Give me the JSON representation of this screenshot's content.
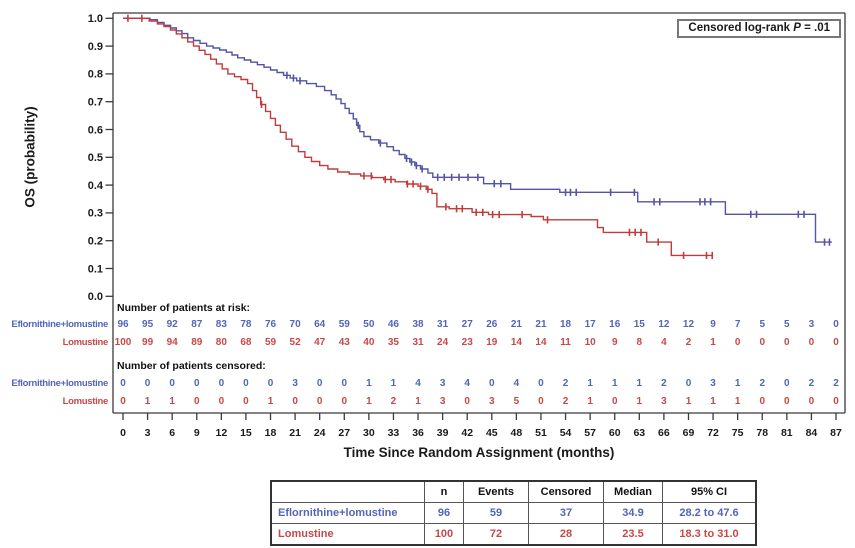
{
  "colors": {
    "blue": "#5254a4",
    "red": "#c23b3b",
    "blue_text": "#5365b8",
    "red_text": "#c74848",
    "axis": "#3a3a3a",
    "text": "#1a1a1a"
  },
  "annotation": {
    "prefix": "Censored log-rank ",
    "p_symbol": "P",
    "suffix": " = .01"
  },
  "y_axis": {
    "title": "OS (probability)",
    "tick_values": [
      1.0,
      0.9,
      0.8,
      0.7,
      0.6,
      0.5,
      0.4,
      0.3,
      0.2,
      0.1,
      0.0
    ]
  },
  "x_axis": {
    "title": "Time Since Random Assignment (months)",
    "ticks": [
      0,
      3,
      6,
      9,
      12,
      15,
      18,
      21,
      24,
      27,
      30,
      33,
      36,
      39,
      42,
      45,
      48,
      51,
      54,
      57,
      60,
      63,
      66,
      69,
      72,
      75,
      78,
      81,
      84,
      87
    ]
  },
  "chart_data": {
    "type": "line",
    "subtype": "kaplan-meier-step",
    "title": "",
    "xlabel": "Time Since Random Assignment (months)",
    "ylabel": "OS (probability)",
    "xlim": [
      0,
      87
    ],
    "ylim": [
      0.0,
      1.0
    ],
    "grid": false,
    "legend_position": "none",
    "annotation": "Censored log-rank P = .01",
    "series": [
      {
        "name": "Eflornithine+lomustine",
        "color_key": "blue",
        "median": 34.9,
        "steps": [
          [
            0,
            1
          ],
          [
            3.3,
            0.995
          ],
          [
            4.2,
            0.985
          ],
          [
            5,
            0.975
          ],
          [
            5.8,
            0.965
          ],
          [
            6.5,
            0.955
          ],
          [
            7.2,
            0.945
          ],
          [
            7.9,
            0.93
          ],
          [
            8.6,
            0.92
          ],
          [
            9.4,
            0.91
          ],
          [
            10.2,
            0.9
          ],
          [
            11,
            0.893
          ],
          [
            11.8,
            0.886
          ],
          [
            12.6,
            0.878
          ],
          [
            13.3,
            0.868
          ],
          [
            14,
            0.858
          ],
          [
            14.8,
            0.85
          ],
          [
            15.6,
            0.842
          ],
          [
            16.4,
            0.833
          ],
          [
            17.2,
            0.824
          ],
          [
            18,
            0.814
          ],
          [
            18.8,
            0.805
          ],
          [
            19.6,
            0.795
          ],
          [
            20.4,
            0.785
          ],
          [
            21.2,
            0.775
          ],
          [
            22.4,
            0.765
          ],
          [
            23.6,
            0.755
          ],
          [
            24.6,
            0.74
          ],
          [
            25.4,
            0.725
          ],
          [
            26,
            0.71
          ],
          [
            26.6,
            0.693
          ],
          [
            27.1,
            0.676
          ],
          [
            27.6,
            0.658
          ],
          [
            28.1,
            0.638
          ],
          [
            28.5,
            0.615
          ],
          [
            28.9,
            0.592
          ],
          [
            29.4,
            0.575
          ],
          [
            30.2,
            0.563
          ],
          [
            31.2,
            0.551
          ],
          [
            32.2,
            0.538
          ],
          [
            33,
            0.524
          ],
          [
            33.7,
            0.51
          ],
          [
            34.4,
            0.496
          ],
          [
            35,
            0.483
          ],
          [
            35.6,
            0.47
          ],
          [
            36.3,
            0.458
          ],
          [
            37.2,
            0.443
          ],
          [
            37.8,
            0.428
          ],
          [
            44,
            0.405
          ],
          [
            47.3,
            0.385
          ],
          [
            53.3,
            0.374
          ],
          [
            62.8,
            0.34
          ],
          [
            73.5,
            0.295
          ],
          [
            84.5,
            0.195
          ]
        ],
        "end_t": 86.5,
        "censor_t": [
          20,
          20.8,
          21.6,
          28.7,
          31.4,
          34.6,
          35.2,
          35.8,
          36.5,
          38.4,
          39.2,
          40.1,
          41,
          42.1,
          43.3,
          45.3,
          46.1,
          54,
          54.6,
          55.3,
          59.5,
          62.4,
          64.8,
          65.5,
          70.4,
          71,
          71.7,
          76.6,
          77.3,
          82.4,
          83.1,
          85.6,
          86.2
        ]
      },
      {
        "name": "Lomustine",
        "color_key": "red",
        "median": 23.5,
        "steps": [
          [
            0,
            1
          ],
          [
            3.2,
            0.99
          ],
          [
            4.2,
            0.98
          ],
          [
            5,
            0.97
          ],
          [
            5.8,
            0.958
          ],
          [
            6.5,
            0.944
          ],
          [
            7.2,
            0.93
          ],
          [
            7.9,
            0.915
          ],
          [
            8.6,
            0.9
          ],
          [
            9.3,
            0.885
          ],
          [
            10,
            0.87
          ],
          [
            10.7,
            0.853
          ],
          [
            11.4,
            0.836
          ],
          [
            12.1,
            0.818
          ],
          [
            12.8,
            0.8
          ],
          [
            13.6,
            0.79
          ],
          [
            14.4,
            0.78
          ],
          [
            15.2,
            0.765
          ],
          [
            15.8,
            0.74
          ],
          [
            16.3,
            0.715
          ],
          [
            16.8,
            0.69
          ],
          [
            17.4,
            0.665
          ],
          [
            18,
            0.64
          ],
          [
            18.6,
            0.615
          ],
          [
            19.2,
            0.59
          ],
          [
            19.9,
            0.565
          ],
          [
            20.6,
            0.54
          ],
          [
            21.4,
            0.52
          ],
          [
            22.2,
            0.5
          ],
          [
            23,
            0.485
          ],
          [
            24,
            0.47
          ],
          [
            25,
            0.458
          ],
          [
            26.2,
            0.447
          ],
          [
            27.6,
            0.44
          ],
          [
            29,
            0.433
          ],
          [
            30.4,
            0.427
          ],
          [
            31.8,
            0.42
          ],
          [
            33.2,
            0.412
          ],
          [
            34.6,
            0.404
          ],
          [
            36,
            0.396
          ],
          [
            37,
            0.385
          ],
          [
            37.7,
            0.37
          ],
          [
            38.3,
            0.322
          ],
          [
            39.8,
            0.315
          ],
          [
            42.6,
            0.302
          ],
          [
            44.6,
            0.294
          ],
          [
            49.8,
            0.287
          ],
          [
            51.3,
            0.275
          ],
          [
            57.9,
            0.247
          ],
          [
            58.6,
            0.23
          ],
          [
            63.9,
            0.195
          ],
          [
            66.9,
            0.147
          ]
        ],
        "end_t": 72,
        "censor_t": [
          0.6,
          2.3,
          16.9,
          29.4,
          30.3,
          32,
          32.7,
          34.7,
          35.4,
          36.3,
          37.2,
          39.4,
          40.7,
          41.4,
          43.1,
          43.9,
          45.1,
          45.9,
          48.7,
          51.8,
          61.8,
          62.5,
          63.2,
          65.3,
          68.4,
          71.2,
          71.9
        ]
      }
    ]
  },
  "risk_section": {
    "at_risk_header": "Number of patients at risk:",
    "censored_header": "Number of patients censored:",
    "rows": [
      {
        "label": "Eflornithine+lomustine",
        "group": "at_risk",
        "color_key": "blue",
        "values": [
          96,
          95,
          92,
          87,
          83,
          78,
          76,
          70,
          64,
          59,
          50,
          46,
          38,
          31,
          27,
          26,
          21,
          21,
          18,
          17,
          16,
          15,
          12,
          12,
          9,
          7,
          5,
          5,
          3,
          0
        ]
      },
      {
        "label": "Lomustine",
        "group": "at_risk",
        "color_key": "red",
        "values": [
          100,
          99,
          94,
          89,
          80,
          68,
          59,
          52,
          47,
          43,
          40,
          35,
          31,
          24,
          23,
          19,
          14,
          14,
          11,
          10,
          9,
          8,
          4,
          2,
          1,
          0,
          0,
          0,
          0,
          0
        ]
      },
      {
        "label": "Eflornithine+lomustine",
        "group": "censored",
        "color_key": "blue",
        "values": [
          0,
          0,
          0,
          0,
          0,
          0,
          0,
          3,
          0,
          0,
          1,
          1,
          4,
          3,
          4,
          0,
          4,
          0,
          2,
          1,
          1,
          1,
          2,
          0,
          3,
          1,
          2,
          0,
          2,
          2
        ]
      },
      {
        "label": "Lomustine",
        "group": "censored",
        "color_key": "red",
        "values": [
          0,
          1,
          1,
          0,
          0,
          0,
          1,
          0,
          0,
          0,
          1,
          2,
          1,
          3,
          0,
          3,
          5,
          0,
          2,
          1,
          0,
          1,
          3,
          1,
          1,
          1,
          0,
          0,
          0,
          0
        ]
      }
    ]
  },
  "summary_table": {
    "headers": [
      "",
      "n",
      "Events",
      "Censored",
      "Median",
      "95% CI"
    ],
    "rows": [
      {
        "label": "Eflornithine+lomustine",
        "n": "96",
        "events": "59",
        "censored": "37",
        "median": "34.9",
        "ci": "28.2 to 47.6",
        "color_key": "blue"
      },
      {
        "label": "Lomustine",
        "n": "100",
        "events": "72",
        "censored": "28",
        "median": "23.5",
        "ci": "18.3 to 31.0",
        "color_key": "red"
      }
    ]
  }
}
